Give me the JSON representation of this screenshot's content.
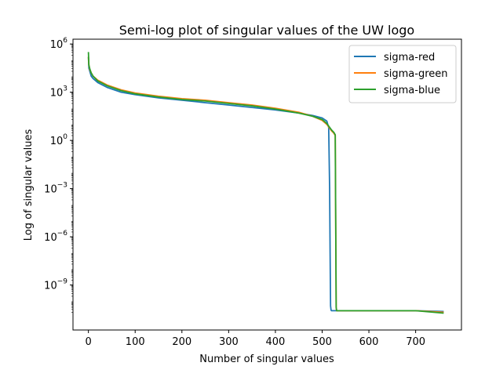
{
  "chart_data": {
    "type": "line",
    "title": "Semi-log plot of singular values of the UW logo",
    "xlabel": "Number of singular values",
    "ylabel": "Log of singular values",
    "xlim": [
      -33,
      798
    ],
    "ylim_log10": [
      -11.8,
      6.3
    ],
    "yscale": "log",
    "xticks": [
      0,
      100,
      200,
      300,
      400,
      500,
      600,
      700
    ],
    "yticks": [
      {
        "exp": 6,
        "base": "10",
        "sup": "6"
      },
      {
        "exp": 3,
        "base": "10",
        "sup": "3"
      },
      {
        "exp": 0,
        "base": "10",
        "sup": "0"
      },
      {
        "exp": -3,
        "base": "10",
        "sup": "−3"
      },
      {
        "exp": -6,
        "base": "10",
        "sup": "−6"
      },
      {
        "exp": -9,
        "base": "10",
        "sup": "−9"
      }
    ],
    "grid": false,
    "legend_position": "top-right",
    "series": [
      {
        "name": "sigma-red",
        "color": "#1f77b4",
        "x": [
          0,
          1,
          3,
          6,
          10,
          20,
          40,
          70,
          100,
          150,
          200,
          250,
          300,
          350,
          400,
          450,
          480,
          500,
          510,
          514,
          516,
          517,
          518,
          519,
          520,
          525,
          530,
          600,
          700,
          760
        ],
        "log10y": [
          5.2,
          4.5,
          4.3,
          4.0,
          3.85,
          3.6,
          3.3,
          3.0,
          2.85,
          2.65,
          2.5,
          2.35,
          2.2,
          2.05,
          1.9,
          1.7,
          1.55,
          1.4,
          1.2,
          0.8,
          -3.0,
          -7.0,
          -10.3,
          -10.55,
          -10.6,
          -10.6,
          -10.6,
          -10.6,
          -10.6,
          -10.65
        ]
      },
      {
        "name": "sigma-green",
        "color": "#ff7f0e",
        "x": [
          0,
          1,
          3,
          6,
          10,
          20,
          40,
          70,
          100,
          150,
          200,
          250,
          300,
          350,
          400,
          450,
          480,
          500,
          510,
          515,
          520,
          525,
          528,
          529,
          530,
          531,
          532,
          540,
          600,
          700,
          760
        ],
        "log10y": [
          5.2,
          4.7,
          4.4,
          4.2,
          4.0,
          3.75,
          3.45,
          3.15,
          2.95,
          2.75,
          2.6,
          2.5,
          2.35,
          2.2,
          2.0,
          1.75,
          1.5,
          1.25,
          1.0,
          0.8,
          0.6,
          0.45,
          0.3,
          -5.0,
          -10.4,
          -10.6,
          -10.6,
          -10.6,
          -10.6,
          -10.6,
          -10.7
        ]
      },
      {
        "name": "sigma-blue",
        "color": "#2ca02c",
        "x": [
          0,
          1,
          3,
          6,
          10,
          20,
          40,
          70,
          100,
          150,
          200,
          250,
          300,
          350,
          400,
          450,
          480,
          500,
          510,
          515,
          520,
          525,
          528,
          529,
          530,
          531,
          532,
          540,
          600,
          700,
          760
        ],
        "log10y": [
          5.5,
          4.7,
          4.45,
          4.2,
          4.0,
          3.7,
          3.4,
          3.1,
          2.9,
          2.7,
          2.55,
          2.45,
          2.3,
          2.15,
          1.95,
          1.7,
          1.5,
          1.3,
          1.05,
          0.85,
          0.65,
          0.5,
          0.35,
          -5.0,
          -10.4,
          -10.6,
          -10.6,
          -10.6,
          -10.6,
          -10.6,
          -10.75
        ]
      }
    ]
  }
}
